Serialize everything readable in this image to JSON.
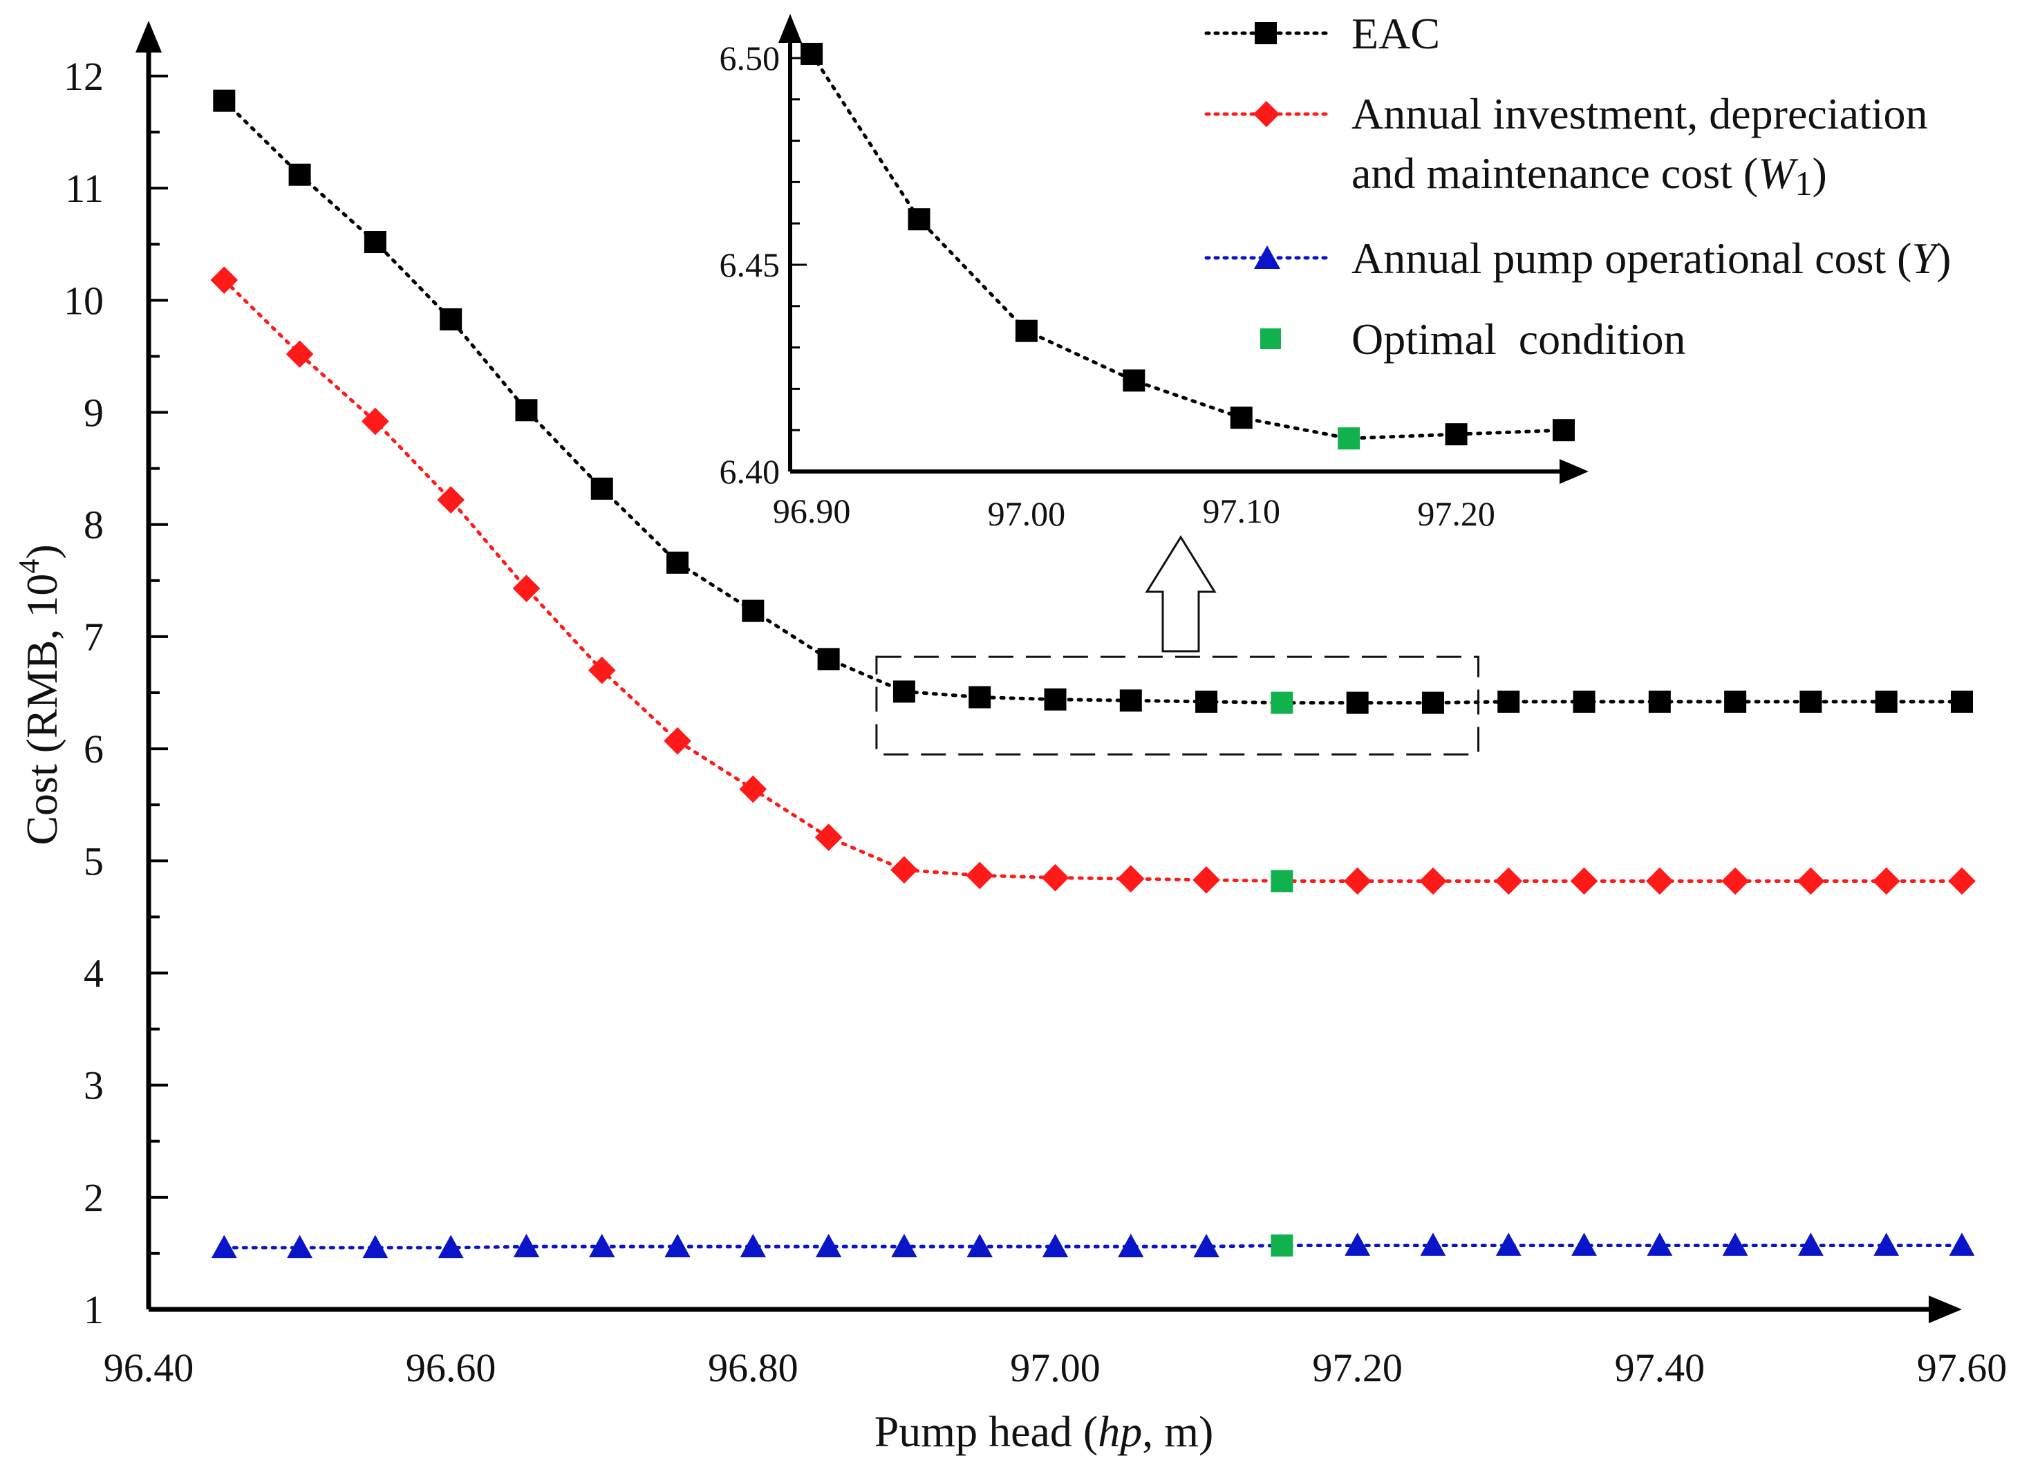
{
  "chart_data": {
    "type": "line",
    "xlabel": "Pump head (",
    "xlabel_italic": "hp",
    "xlabel_tail": ", m)",
    "ylabel": "Cost (RMB, 10",
    "ylabel_sup": "4",
    "ylabel_tail": ")",
    "xlim": [
      96.4,
      97.6
    ],
    "ylim": [
      1,
      12.5
    ],
    "x_ticks": [
      "96.40",
      "96.60",
      "96.80",
      "97.00",
      "97.20",
      "97.40",
      "97.60"
    ],
    "y_ticks": [
      "1",
      "2",
      "3",
      "4",
      "5",
      "6",
      "7",
      "8",
      "9",
      "10",
      "11",
      "12"
    ],
    "x": [
      96.45,
      96.5,
      96.55,
      96.6,
      96.65,
      96.7,
      96.75,
      96.8,
      96.85,
      96.9,
      96.95,
      97.0,
      97.05,
      97.1,
      97.15,
      97.2,
      97.25,
      97.3,
      97.35,
      97.4,
      97.45,
      97.5,
      97.55,
      97.6
    ],
    "optimal_index": 14,
    "series": [
      {
        "name": "EAC",
        "color": "#000000",
        "marker": "square",
        "values": [
          11.78,
          11.12,
          10.52,
          9.83,
          9.02,
          8.32,
          7.66,
          7.23,
          6.8,
          6.51,
          6.46,
          6.44,
          6.43,
          6.42,
          6.41,
          6.41,
          6.41,
          6.42,
          6.42,
          6.42,
          6.42,
          6.42,
          6.42,
          6.42
        ]
      },
      {
        "name": "Annual investment, depreciation",
        "name_line2": "and maintenance cost (",
        "name_italic": "W",
        "name_sub": "1",
        "name_tail": ")",
        "color": "#ff1a1a",
        "marker": "diamond",
        "values": [
          10.18,
          9.52,
          8.92,
          8.22,
          7.43,
          6.7,
          6.07,
          5.64,
          5.21,
          4.92,
          4.87,
          4.85,
          4.84,
          4.83,
          4.82,
          4.82,
          4.82,
          4.82,
          4.82,
          4.82,
          4.82,
          4.82,
          4.82,
          4.82
        ]
      },
      {
        "name": "Annual pump operational cost (",
        "name_italic": "Y",
        "name_tail": ")",
        "color": "#0a14c8",
        "marker": "triangle",
        "values": [
          1.55,
          1.55,
          1.55,
          1.55,
          1.56,
          1.56,
          1.56,
          1.56,
          1.56,
          1.56,
          1.56,
          1.56,
          1.56,
          1.56,
          1.57,
          1.57,
          1.57,
          1.57,
          1.57,
          1.57,
          1.57,
          1.57,
          1.57,
          1.57
        ]
      }
    ],
    "optimal": {
      "name": "Optimal  condition",
      "color": "#11b24d",
      "marker": "square"
    },
    "legend_position": "top-right",
    "inset": {
      "xlim": [
        96.89,
        97.25
      ],
      "ylim": [
        6.4,
        6.503
      ],
      "x_ticks": [
        "96.90",
        "97.00",
        "97.10",
        "97.20"
      ],
      "y_ticks": [
        "6.40",
        "6.45",
        "6.50"
      ],
      "x": [
        96.9,
        96.95,
        97.0,
        97.05,
        97.1,
        97.15,
        97.2,
        97.25
      ],
      "values": [
        6.501,
        6.461,
        6.434,
        6.422,
        6.413,
        6.408,
        6.409,
        6.41
      ],
      "optimal_index": 5,
      "zoom_region_x": [
        96.9,
        97.28
      ],
      "zoom_region_y": [
        5.95,
        6.82
      ]
    }
  }
}
